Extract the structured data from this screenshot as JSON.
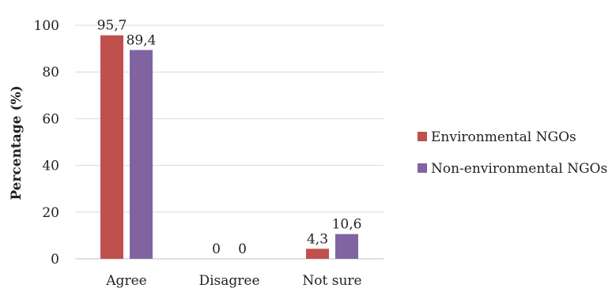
{
  "chart_data": {
    "type": "bar",
    "categories": [
      "Agree",
      "Disagree",
      "Not sure"
    ],
    "series": [
      {
        "name": "Environmental NGOs",
        "values": [
          95.7,
          0,
          4.3
        ],
        "labels": [
          "95,7",
          "0",
          "4,3"
        ],
        "color": "#c0504d"
      },
      {
        "name": "Non-environmental NGOs",
        "values": [
          89.4,
          0,
          10.6
        ],
        "labels": [
          "89,4",
          "0",
          "10,6"
        ],
        "color": "#8064a2"
      }
    ],
    "ylabel": "Percentage (%)",
    "ylim": [
      0,
      100
    ],
    "yticks": [
      0,
      20,
      40,
      60,
      80,
      100
    ],
    "grid": true,
    "legend_position": "right"
  }
}
